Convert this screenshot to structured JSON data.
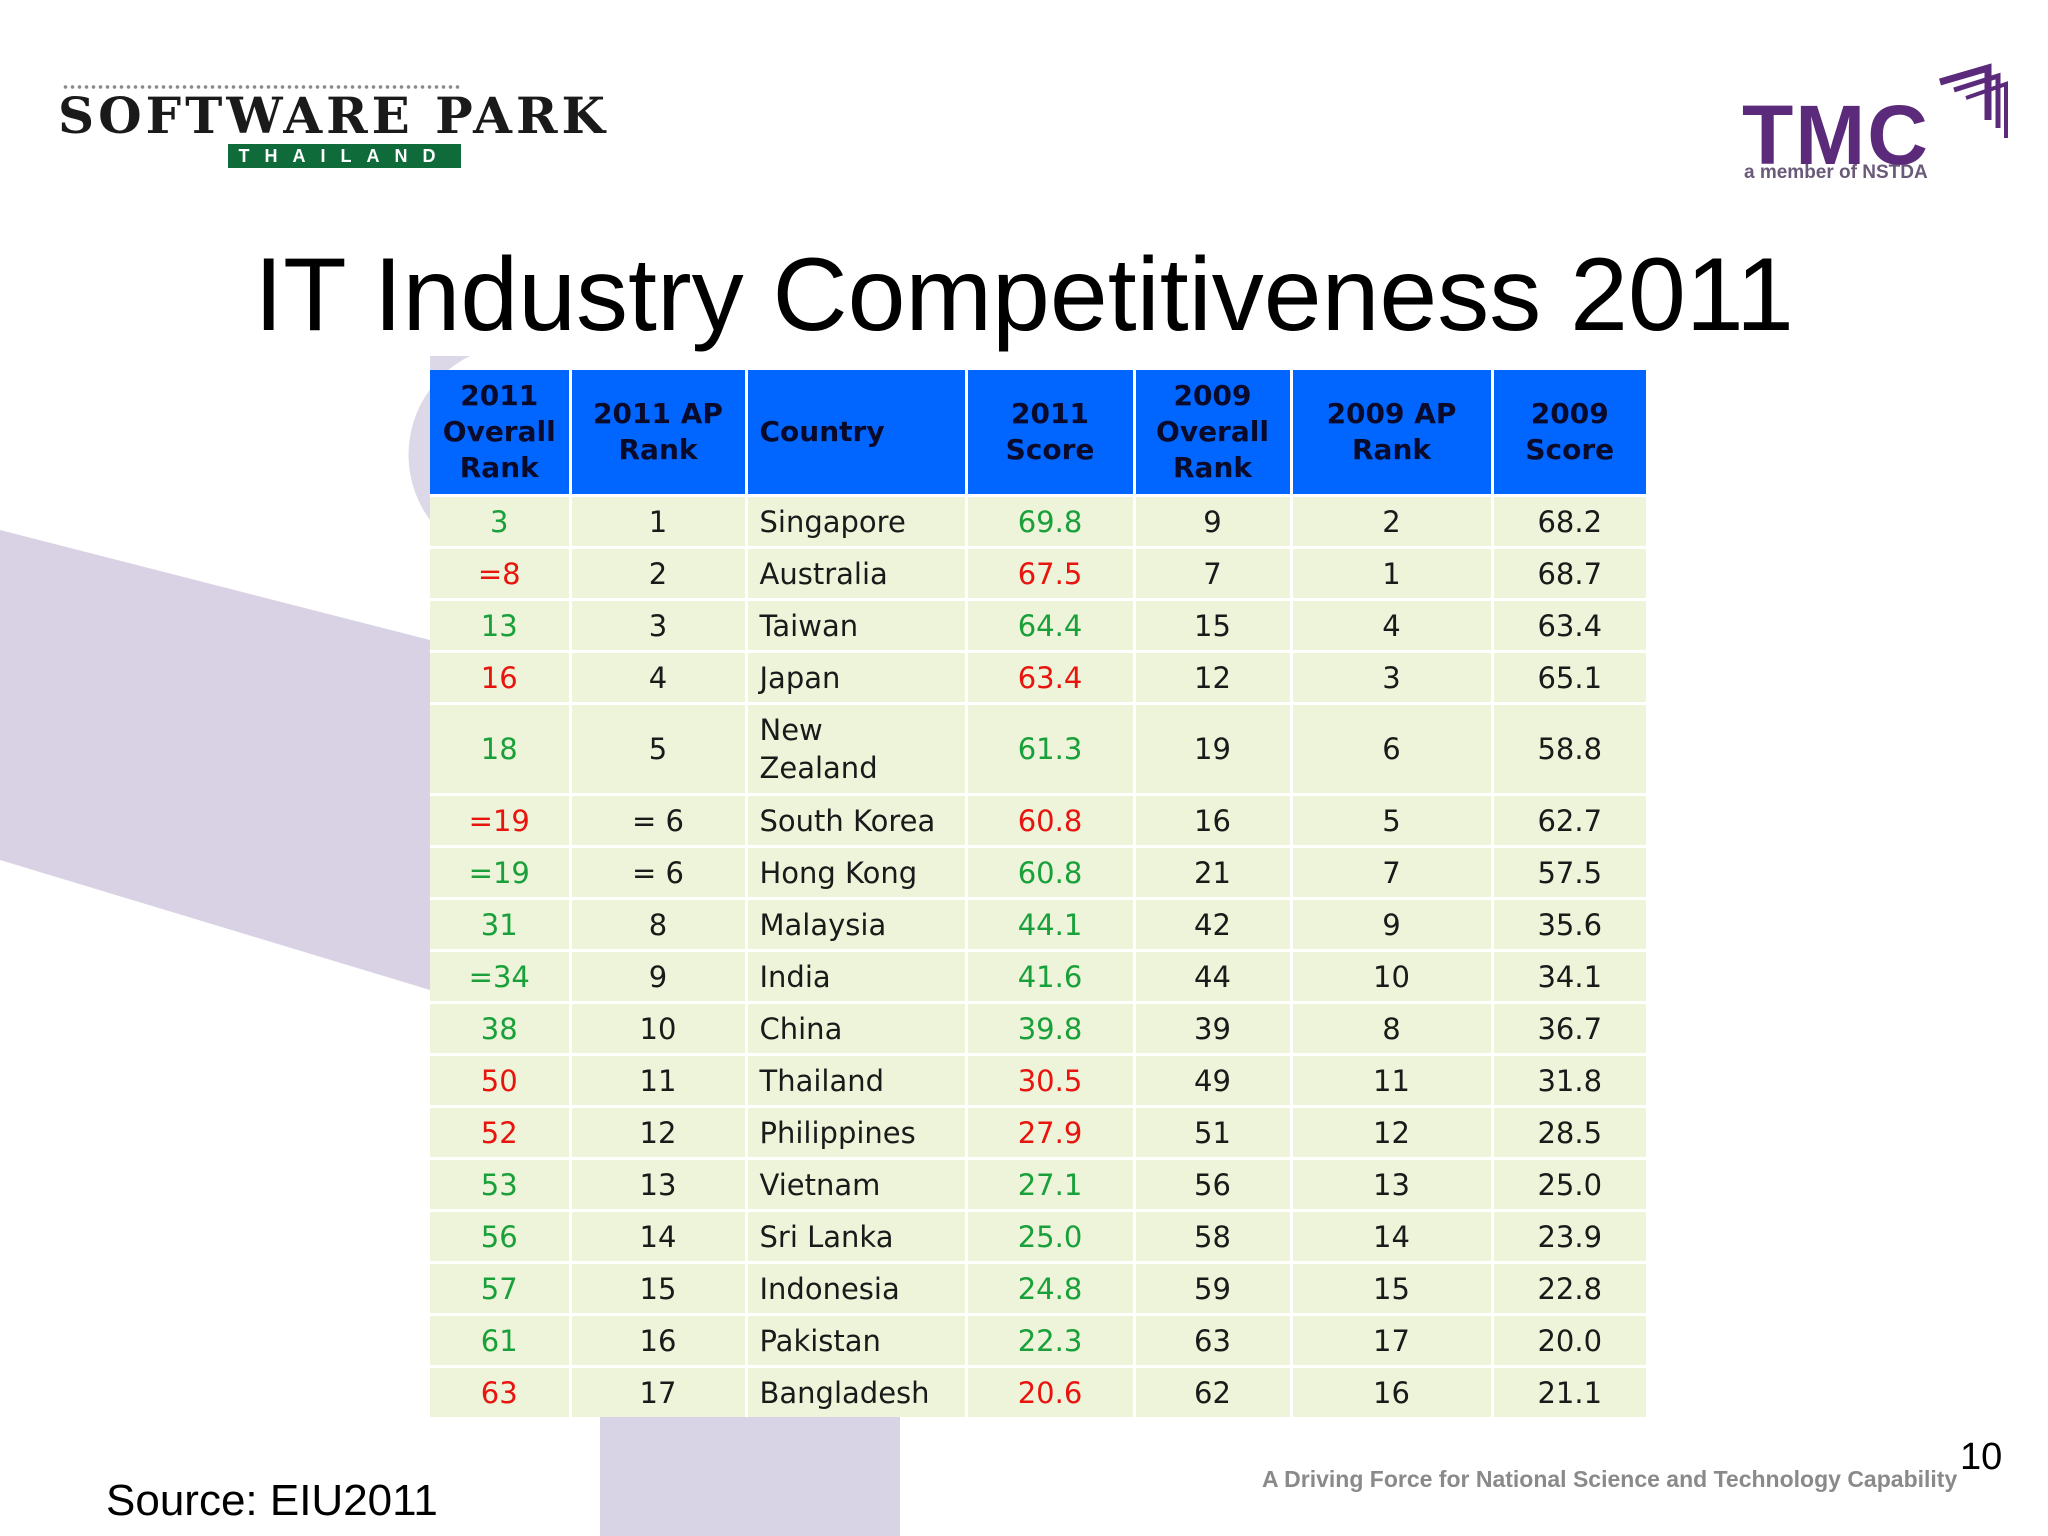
{
  "logos": {
    "software_park": {
      "main": "SOFTWARE PARK",
      "sub": "THAILAND"
    },
    "tmc": {
      "main": "TMC",
      "member": "a member of NSTDA"
    }
  },
  "title": "IT Industry Competitiveness 2011",
  "table": {
    "headers": [
      "2011 Overall Rank",
      "2011 AP Rank",
      "Country",
      "2011 Score",
      "2009 Overall Rank",
      "2009 AP Rank",
      "2009 Score"
    ],
    "colors": {
      "header_bg": "#0066ff",
      "row_bg": "#edf4d9",
      "improved": "#1aa03a",
      "declined": "#e8140e"
    },
    "rows": [
      {
        "overall_2011": "3",
        "ap_2011": "1",
        "country": "Singapore",
        "score_2011": "69.8",
        "overall_2009": "9",
        "ap_2009": "2",
        "score_2009": "68.2",
        "trend": "green"
      },
      {
        "overall_2011": "=8",
        "ap_2011": "2",
        "country": "Australia",
        "score_2011": "67.5",
        "overall_2009": "7",
        "ap_2009": "1",
        "score_2009": "68.7",
        "trend": "red"
      },
      {
        "overall_2011": "13",
        "ap_2011": "3",
        "country": "Taiwan",
        "score_2011": "64.4",
        "overall_2009": "15",
        "ap_2009": "4",
        "score_2009": "63.4",
        "trend": "green"
      },
      {
        "overall_2011": "16",
        "ap_2011": "4",
        "country": "Japan",
        "score_2011": "63.4",
        "overall_2009": "12",
        "ap_2009": "3",
        "score_2009": "65.1",
        "trend": "red"
      },
      {
        "overall_2011": "18",
        "ap_2011": "5",
        "country": "New Zealand",
        "score_2011": "61.3",
        "overall_2009": "19",
        "ap_2009": "6",
        "score_2009": "58.8",
        "trend": "green"
      },
      {
        "overall_2011": "=19",
        "ap_2011": "= 6",
        "country": "South Korea",
        "score_2011": "60.8",
        "overall_2009": "16",
        "ap_2009": "5",
        "score_2009": "62.7",
        "trend": "red"
      },
      {
        "overall_2011": "=19",
        "ap_2011": "= 6",
        "country": "Hong Kong",
        "score_2011": "60.8",
        "overall_2009": "21",
        "ap_2009": "7",
        "score_2009": "57.5",
        "trend": "green"
      },
      {
        "overall_2011": "31",
        "ap_2011": "8",
        "country": "Malaysia",
        "score_2011": "44.1",
        "overall_2009": "42",
        "ap_2009": "9",
        "score_2009": "35.6",
        "trend": "green"
      },
      {
        "overall_2011": "=34",
        "ap_2011": "9",
        "country": "India",
        "score_2011": "41.6",
        "overall_2009": "44",
        "ap_2009": "10",
        "score_2009": "34.1",
        "trend": "green"
      },
      {
        "overall_2011": "38",
        "ap_2011": "10",
        "country": "China",
        "score_2011": "39.8",
        "overall_2009": "39",
        "ap_2009": "8",
        "score_2009": "36.7",
        "trend": "green"
      },
      {
        "overall_2011": "50",
        "ap_2011": "11",
        "country": "Thailand",
        "score_2011": "30.5",
        "overall_2009": "49",
        "ap_2009": "11",
        "score_2009": "31.8",
        "trend": "red"
      },
      {
        "overall_2011": "52",
        "ap_2011": "12",
        "country": "Philippines",
        "score_2011": "27.9",
        "overall_2009": "51",
        "ap_2009": "12",
        "score_2009": "28.5",
        "trend": "red"
      },
      {
        "overall_2011": "53",
        "ap_2011": "13",
        "country": "Vietnam",
        "score_2011": "27.1",
        "overall_2009": "56",
        "ap_2009": "13",
        "score_2009": "25.0",
        "trend": "green"
      },
      {
        "overall_2011": "56",
        "ap_2011": "14",
        "country": "Sri Lanka",
        "score_2011": "25.0",
        "overall_2009": "58",
        "ap_2009": "14",
        "score_2009": "23.9",
        "trend": "green"
      },
      {
        "overall_2011": "57",
        "ap_2011": "15",
        "country": "Indonesia",
        "score_2011": "24.8",
        "overall_2009": "59",
        "ap_2009": "15",
        "score_2009": "22.8",
        "trend": "green"
      },
      {
        "overall_2011": "61",
        "ap_2011": "16",
        "country": "Pakistan",
        "score_2011": "22.3",
        "overall_2009": "63",
        "ap_2009": "17",
        "score_2009": "20.0",
        "trend": "green"
      },
      {
        "overall_2011": "63",
        "ap_2011": "17",
        "country": "Bangladesh",
        "score_2011": "20.6",
        "overall_2009": "62",
        "ap_2009": "16",
        "score_2009": "21.1",
        "trend": "red"
      }
    ]
  },
  "footer": {
    "page_number": "10",
    "source": "Source:  EIU2011",
    "tagline": "A Driving Force for National Science and Technology Capability"
  }
}
